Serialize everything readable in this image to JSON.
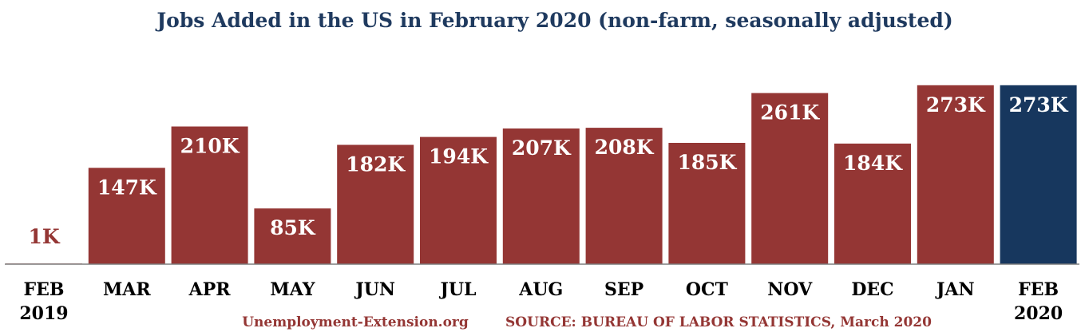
{
  "colors": {
    "bar": "#943634",
    "highlight": "#17375e",
    "title": "#1f3a5f",
    "axis": "#7f7f7f"
  },
  "footer": {
    "website": "Unemployment-Extension.org",
    "source": "SOURCE: BUREAU OF LABOR STATISTICS, March 2020"
  },
  "chart_data": {
    "type": "bar",
    "title": "Jobs Added in the US in February 2020 (non-farm, seasonally adjusted)",
    "xlabel": "",
    "ylabel": "",
    "ylim": [
      0,
      280
    ],
    "grid": false,
    "categories": [
      [
        "FEB",
        "2019"
      ],
      [
        "MAR"
      ],
      [
        "APR"
      ],
      [
        "MAY"
      ],
      [
        "JUN"
      ],
      [
        "JUL"
      ],
      [
        "AUG"
      ],
      [
        "SEP"
      ],
      [
        "OCT"
      ],
      [
        "NOV"
      ],
      [
        "DEC"
      ],
      [
        "JAN"
      ],
      [
        "FEB",
        "2020"
      ]
    ],
    "values": [
      1,
      147,
      210,
      85,
      182,
      194,
      207,
      208,
      185,
      261,
      184,
      273,
      273
    ],
    "data_labels": [
      "1K",
      "147K",
      "210K",
      "85K",
      "182K",
      "194K",
      "207K",
      "208K",
      "185K",
      "261K",
      "184K",
      "273K",
      "273K"
    ],
    "highlight_index": 12
  }
}
